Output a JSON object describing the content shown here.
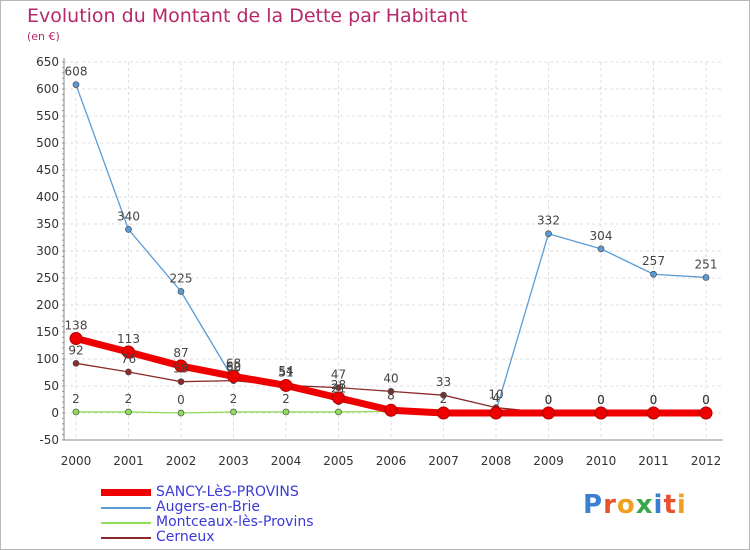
{
  "title": "Evolution du Montant de la Dette par Habitant",
  "subtitle": "(en €)",
  "logo": {
    "text": "Proxiti",
    "colors": [
      "#3a7fd0",
      "#e8522e",
      "#f0a020",
      "#3aa64a",
      "#3a7fd0",
      "#e8522e",
      "#f0a020"
    ]
  },
  "chart_data": {
    "type": "line",
    "x": [
      "2000",
      "2001",
      "2002",
      "2003",
      "2004",
      "2005",
      "2006",
      "2007",
      "2008",
      "2009",
      "2010",
      "2011",
      "2012"
    ],
    "ylim": [
      -50,
      650
    ],
    "yticks": [
      "-50",
      "0",
      "50",
      "100",
      "150",
      "200",
      "250",
      "300",
      "350",
      "400",
      "450",
      "500",
      "550",
      "600",
      "650"
    ],
    "grid": true,
    "legend_position": "bottom-left",
    "series": [
      {
        "name": "SANCY-LèS-PROVINS",
        "color": "#ee0000",
        "values": [
          138,
          113,
          87,
          68,
          51,
          28,
          5,
          0,
          0,
          0,
          0,
          0,
          0
        ],
        "labels": [
          "138",
          "113",
          "87",
          "68",
          "51",
          "28",
          "",
          "",
          "",
          "0",
          "0",
          "0",
          "0"
        ]
      },
      {
        "name": "Augers-en-Brie",
        "color": "#5b9bd5",
        "values": [
          608,
          340,
          225,
          62,
          54,
          21,
          8,
          4,
          4,
          332,
          304,
          257,
          251
        ],
        "labels": [
          "608",
          "340",
          "225",
          "62",
          "54",
          "21",
          "8",
          "",
          "4",
          "332",
          "304",
          "257",
          "251"
        ]
      },
      {
        "name": "Montceaux-lès-Provins",
        "color": "#8fdc5a",
        "values": [
          2,
          2,
          0,
          2,
          2,
          2,
          3,
          2,
          0,
          0,
          0,
          0,
          0
        ],
        "labels": [
          "2",
          "2",
          "0",
          "2",
          "2",
          "",
          "",
          "2",
          "",
          "0",
          "0",
          "0",
          "0"
        ]
      },
      {
        "name": "Cerneux",
        "color": "#8b2a2a",
        "values": [
          92,
          76,
          58,
          60,
          51,
          47,
          40,
          33,
          10,
          0,
          0,
          0,
          0
        ],
        "labels": [
          "92",
          "76",
          "58",
          "60",
          "51",
          "47",
          "40",
          "33",
          "10",
          "0",
          "0",
          "0",
          "0"
        ]
      }
    ]
  }
}
